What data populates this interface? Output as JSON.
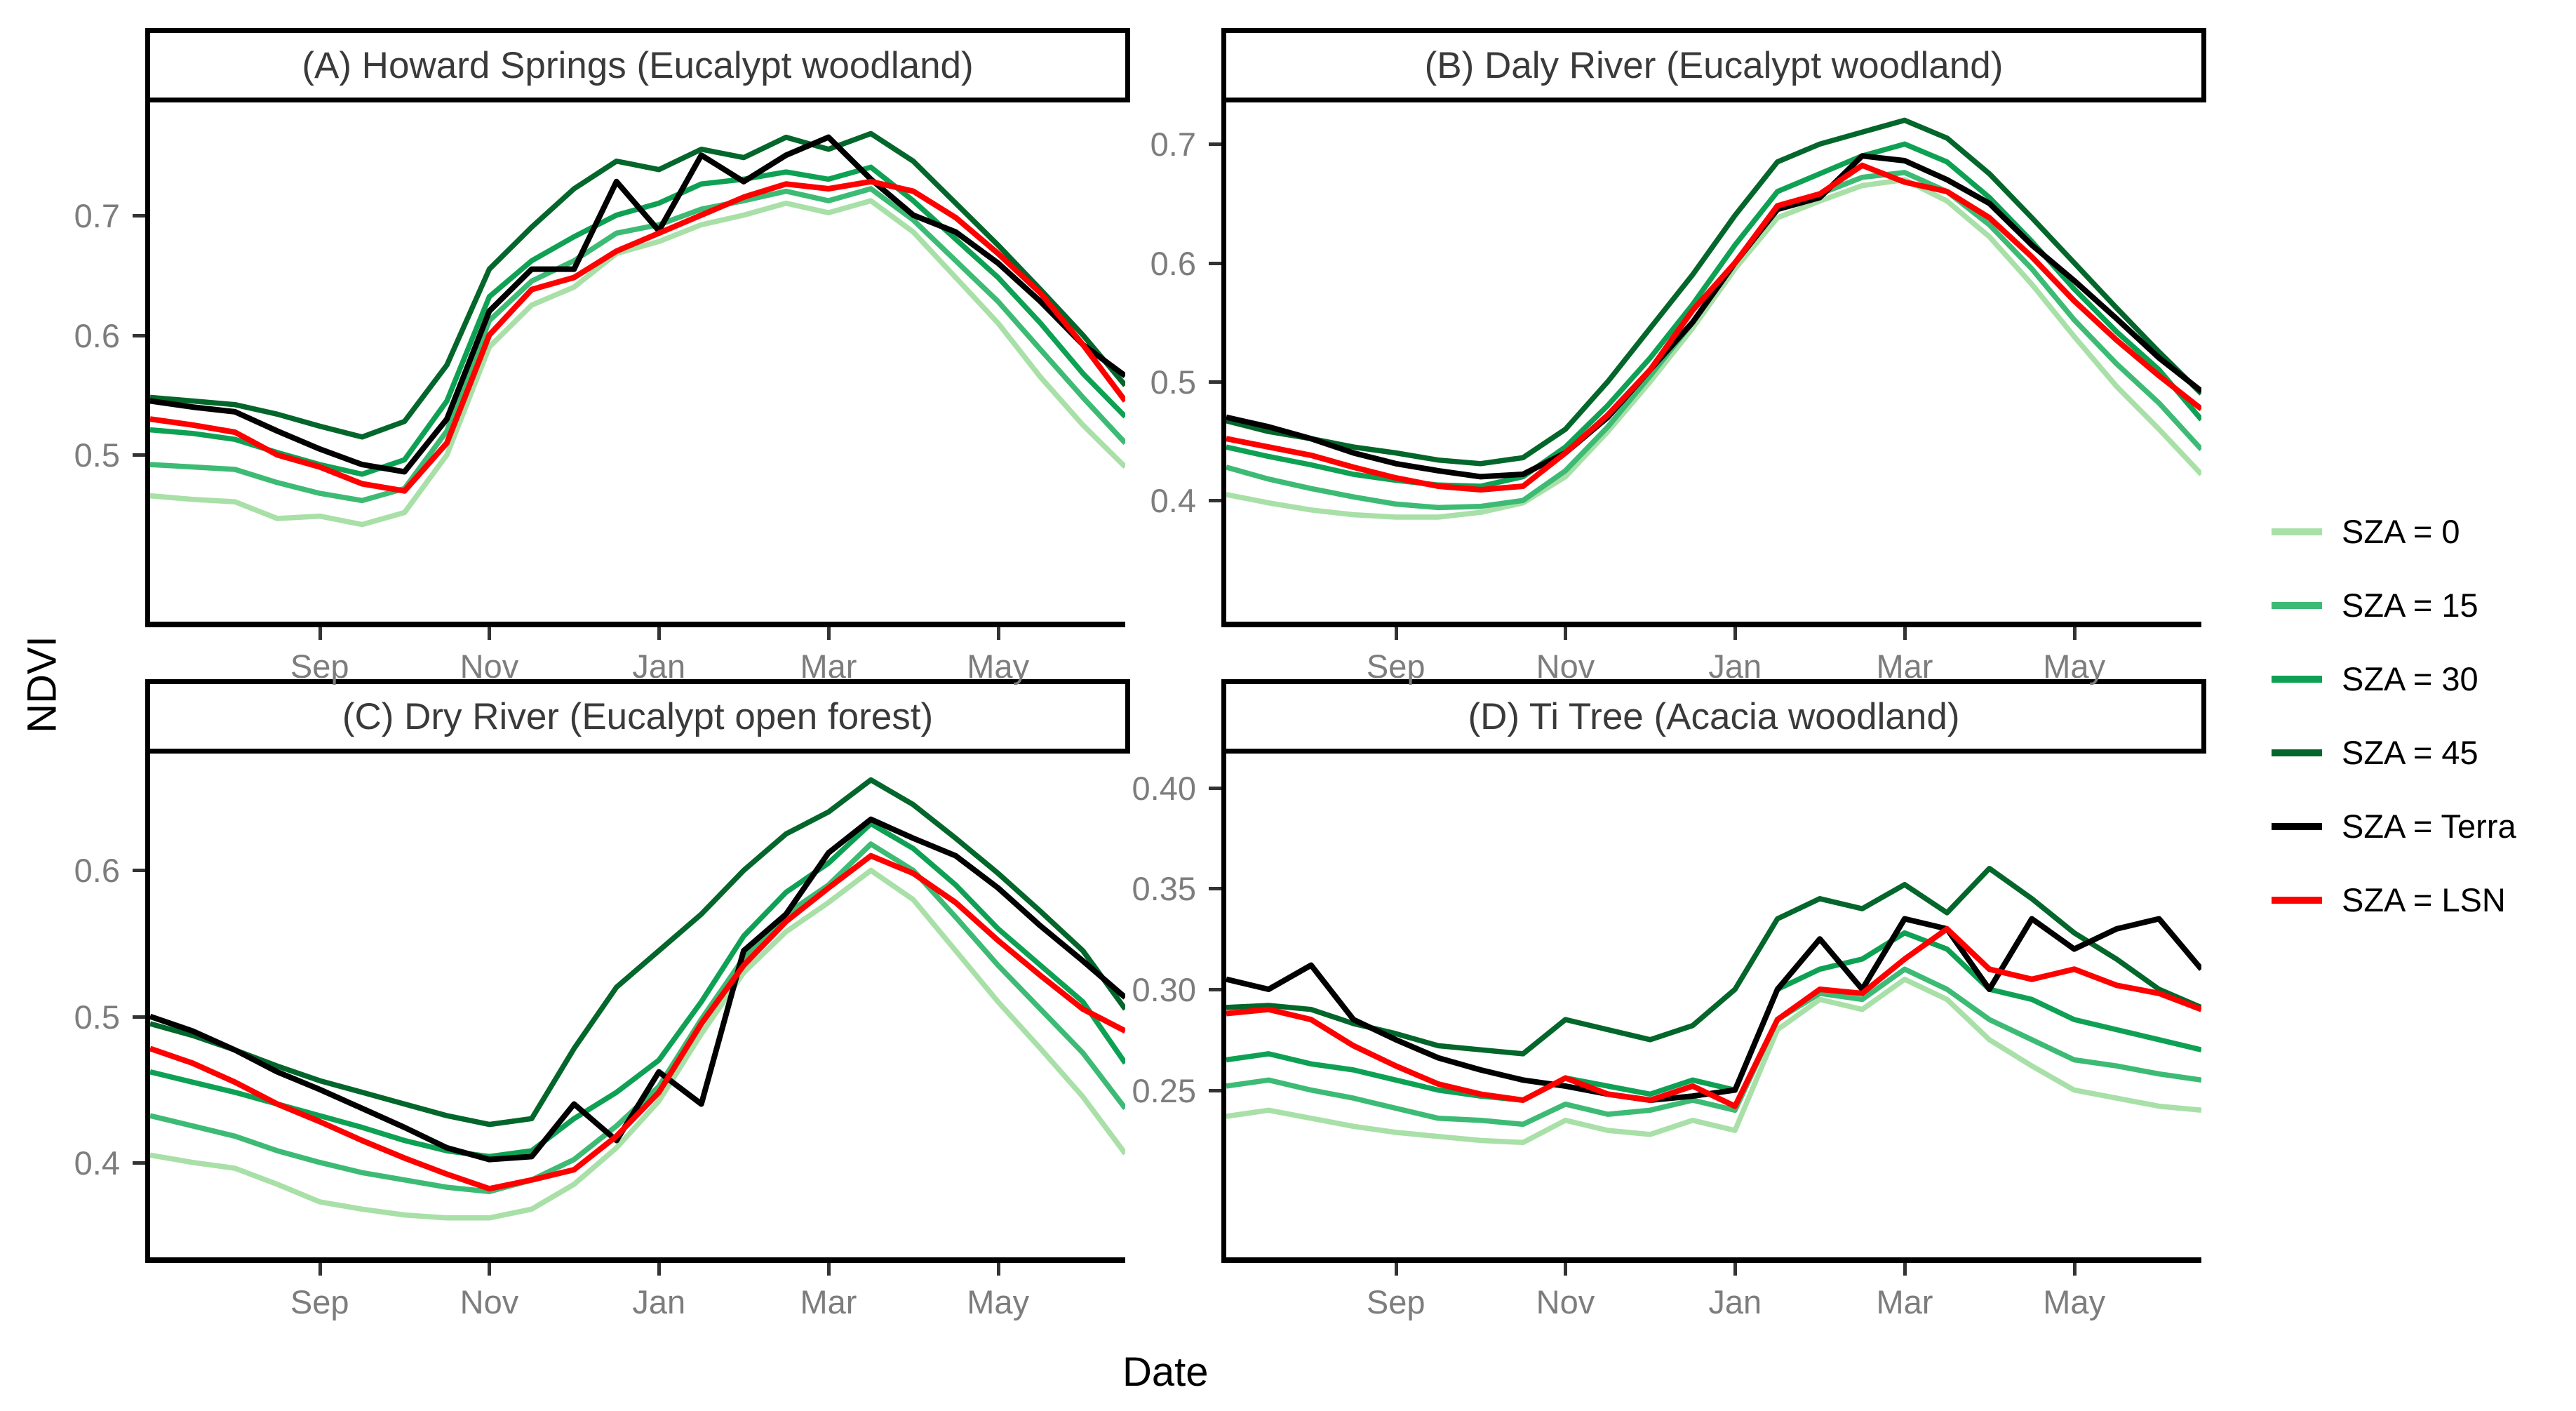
{
  "figure": {
    "ylabel": "NDVI",
    "xlabel": "Date"
  },
  "legend": {
    "position": "right-middle",
    "items": [
      {
        "label": "SZA = 0",
        "color": "#A8E0A8"
      },
      {
        "label": "SZA = 15",
        "color": "#3DBB75"
      },
      {
        "label": "SZA = 30",
        "color": "#0EA154"
      },
      {
        "label": "SZA = 45",
        "color": "#03662B"
      },
      {
        "label": "SZA = Terra",
        "color": "#000000"
      },
      {
        "label": "SZA = LSN",
        "color": "#FF0000"
      }
    ]
  },
  "chart_data": [
    {
      "type": "line",
      "title": "(A) Howard Springs (Eucalypt woodland)",
      "xlabel": "Date",
      "ylabel": "NDVI",
      "x_description": "semi-monthly time steps from Jul 1 to Jun 16 (24 points)",
      "x_tick_labels": [
        "Sep",
        "Nov",
        "Jan",
        "Mar",
        "May"
      ],
      "x_tick_index": [
        4,
        8,
        12,
        16,
        20
      ],
      "ylim": [
        0.361,
        0.794
      ],
      "yticks": [
        {
          "v": 0.5,
          "label": "0.5"
        },
        {
          "v": 0.6,
          "label": "0.6"
        },
        {
          "v": 0.7,
          "label": "0.7"
        }
      ],
      "grid": false,
      "series": [
        {
          "name": "SZA = 0",
          "color": "#A8E0A8",
          "width": 7.5,
          "values": [
            0.466,
            0.463,
            0.461,
            0.447,
            0.449,
            0.442,
            0.452,
            0.5,
            0.59,
            0.625,
            0.64,
            0.668,
            0.678,
            0.692,
            0.7,
            0.71,
            0.702,
            0.712,
            0.686,
            0.648,
            0.61,
            0.565,
            0.525,
            0.49
          ]
        },
        {
          "name": "SZA = 15",
          "color": "#3DBB75",
          "width": 7.5,
          "values": [
            0.492,
            0.49,
            0.488,
            0.477,
            0.468,
            0.462,
            0.472,
            0.52,
            0.612,
            0.645,
            0.662,
            0.685,
            0.692,
            0.705,
            0.712,
            0.72,
            0.712,
            0.722,
            0.696,
            0.662,
            0.628,
            0.588,
            0.548,
            0.51
          ]
        },
        {
          "name": "SZA = 30",
          "color": "#0EA154",
          "width": 7.5,
          "values": [
            0.521,
            0.518,
            0.513,
            0.502,
            0.492,
            0.484,
            0.496,
            0.545,
            0.632,
            0.662,
            0.682,
            0.7,
            0.71,
            0.726,
            0.73,
            0.736,
            0.73,
            0.74,
            0.712,
            0.68,
            0.648,
            0.61,
            0.568,
            0.532
          ]
        },
        {
          "name": "SZA = 45",
          "color": "#03662B",
          "width": 7.5,
          "values": [
            0.548,
            0.545,
            0.542,
            0.534,
            0.524,
            0.515,
            0.528,
            0.575,
            0.655,
            0.69,
            0.722,
            0.745,
            0.738,
            0.755,
            0.748,
            0.765,
            0.755,
            0.768,
            0.745,
            0.71,
            0.675,
            0.638,
            0.6,
            0.558
          ]
        },
        {
          "name": "SZA = Terra",
          "color": "#000000",
          "width": 8,
          "values": [
            0.545,
            0.54,
            0.536,
            0.52,
            0.505,
            0.492,
            0.486,
            0.53,
            0.62,
            0.655,
            0.655,
            0.728,
            0.687,
            0.75,
            0.728,
            0.75,
            0.765,
            0.73,
            0.7,
            0.686,
            0.66,
            0.628,
            0.592,
            0.566
          ]
        },
        {
          "name": "SZA = LSN",
          "color": "#FF0000",
          "width": 8,
          "values": [
            0.53,
            0.525,
            0.519,
            0.5,
            0.49,
            0.476,
            0.47,
            0.51,
            0.6,
            0.638,
            0.648,
            0.67,
            0.685,
            0.7,
            0.715,
            0.726,
            0.722,
            0.728,
            0.72,
            0.698,
            0.668,
            0.635,
            0.592,
            0.545
          ]
        }
      ]
    },
    {
      "type": "line",
      "title": "(B) Daly River (Eucalypt woodland)",
      "xlabel": "Date",
      "ylabel": "NDVI",
      "x_description": "semi-monthly time steps from Jul 1 to Jun 16 (24 points)",
      "x_tick_labels": [
        "Sep",
        "Nov",
        "Jan",
        "Mar",
        "May"
      ],
      "x_tick_index": [
        4,
        8,
        12,
        16,
        20
      ],
      "ylim": [
        0.298,
        0.735
      ],
      "yticks": [
        {
          "v": 0.4,
          "label": "0.4"
        },
        {
          "v": 0.5,
          "label": "0.5"
        },
        {
          "v": 0.6,
          "label": "0.6"
        },
        {
          "v": 0.7,
          "label": "0.7"
        }
      ],
      "grid": false,
      "series": [
        {
          "name": "SZA = 0",
          "color": "#A8E0A8",
          "width": 7.5,
          "values": [
            0.405,
            0.398,
            0.392,
            0.388,
            0.386,
            0.386,
            0.39,
            0.398,
            0.42,
            0.458,
            0.5,
            0.545,
            0.595,
            0.638,
            0.652,
            0.665,
            0.67,
            0.652,
            0.622,
            0.582,
            0.538,
            0.496,
            0.46,
            0.422
          ]
        },
        {
          "name": "SZA = 15",
          "color": "#3DBB75",
          "width": 7.5,
          "values": [
            0.428,
            0.418,
            0.41,
            0.403,
            0.397,
            0.394,
            0.395,
            0.4,
            0.425,
            0.462,
            0.505,
            0.55,
            0.6,
            0.645,
            0.658,
            0.672,
            0.676,
            0.66,
            0.632,
            0.595,
            0.552,
            0.515,
            0.482,
            0.443
          ]
        },
        {
          "name": "SZA = 30",
          "color": "#0EA154",
          "width": 7.5,
          "values": [
            0.445,
            0.437,
            0.43,
            0.422,
            0.417,
            0.413,
            0.412,
            0.42,
            0.445,
            0.48,
            0.52,
            0.565,
            0.615,
            0.66,
            0.675,
            0.69,
            0.7,
            0.685,
            0.655,
            0.618,
            0.578,
            0.542,
            0.51,
            0.468
          ]
        },
        {
          "name": "SZA = 45",
          "color": "#03662B",
          "width": 7.5,
          "values": [
            0.467,
            0.458,
            0.452,
            0.445,
            0.44,
            0.434,
            0.431,
            0.436,
            0.46,
            0.5,
            0.545,
            0.59,
            0.64,
            0.685,
            0.7,
            0.71,
            0.72,
            0.705,
            0.675,
            0.638,
            0.6,
            0.562,
            0.525,
            0.49
          ]
        },
        {
          "name": "SZA = Terra",
          "color": "#000000",
          "width": 8,
          "values": [
            0.47,
            0.462,
            0.452,
            0.44,
            0.431,
            0.425,
            0.42,
            0.422,
            0.44,
            0.47,
            0.51,
            0.55,
            0.6,
            0.645,
            0.655,
            0.69,
            0.686,
            0.67,
            0.65,
            0.615,
            0.585,
            0.553,
            0.52,
            0.492
          ]
        },
        {
          "name": "SZA = LSN",
          "color": "#FF0000",
          "width": 8,
          "values": [
            0.452,
            0.445,
            0.438,
            0.428,
            0.419,
            0.412,
            0.409,
            0.412,
            0.44,
            0.472,
            0.51,
            0.56,
            0.6,
            0.648,
            0.658,
            0.682,
            0.668,
            0.66,
            0.638,
            0.605,
            0.568,
            0.535,
            0.505,
            0.477
          ]
        }
      ]
    },
    {
      "type": "line",
      "title": "(C) Dry River (Eucalypt open forest)",
      "xlabel": "Date",
      "ylabel": "NDVI",
      "x_description": "semi-monthly time steps from Jul 1 to Jun 16 (24 points)",
      "x_tick_labels": [
        "Sep",
        "Nov",
        "Jan",
        "Mar",
        "May"
      ],
      "x_tick_index": [
        4,
        8,
        12,
        16,
        20
      ],
      "ylim": [
        0.335,
        0.68
      ],
      "yticks": [
        {
          "v": 0.4,
          "label": "0.4"
        },
        {
          "v": 0.5,
          "label": "0.5"
        },
        {
          "v": 0.6,
          "label": "0.6"
        }
      ],
      "grid": false,
      "series": [
        {
          "name": "SZA = 0",
          "color": "#A8E0A8",
          "width": 7.5,
          "values": [
            0.405,
            0.4,
            0.396,
            0.385,
            0.373,
            0.368,
            0.364,
            0.362,
            0.362,
            0.368,
            0.385,
            0.41,
            0.442,
            0.488,
            0.53,
            0.558,
            0.578,
            0.6,
            0.58,
            0.545,
            0.51,
            0.478,
            0.445,
            0.406
          ]
        },
        {
          "name": "SZA = 15",
          "color": "#3DBB75",
          "width": 7.5,
          "values": [
            0.432,
            0.425,
            0.418,
            0.408,
            0.4,
            0.393,
            0.388,
            0.383,
            0.38,
            0.388,
            0.402,
            0.425,
            0.452,
            0.498,
            0.54,
            0.57,
            0.59,
            0.618,
            0.6,
            0.568,
            0.535,
            0.505,
            0.475,
            0.437
          ]
        },
        {
          "name": "SZA = 30",
          "color": "#0EA154",
          "width": 7.5,
          "values": [
            0.462,
            0.455,
            0.448,
            0.44,
            0.432,
            0.424,
            0.415,
            0.408,
            0.404,
            0.408,
            0.43,
            0.448,
            0.47,
            0.51,
            0.555,
            0.585,
            0.605,
            0.632,
            0.615,
            0.59,
            0.56,
            0.535,
            0.51,
            0.468
          ]
        },
        {
          "name": "SZA = 45",
          "color": "#03662B",
          "width": 7.5,
          "values": [
            0.495,
            0.487,
            0.477,
            0.466,
            0.456,
            0.448,
            0.44,
            0.432,
            0.426,
            0.43,
            0.478,
            0.52,
            0.545,
            0.57,
            0.6,
            0.625,
            0.64,
            0.662,
            0.645,
            0.622,
            0.598,
            0.572,
            0.545,
            0.505
          ]
        },
        {
          "name": "SZA = Terra",
          "color": "#000000",
          "width": 8,
          "values": [
            0.5,
            0.49,
            0.477,
            0.462,
            0.45,
            0.437,
            0.424,
            0.41,
            0.402,
            0.404,
            0.44,
            0.415,
            0.462,
            0.44,
            0.545,
            0.57,
            0.612,
            0.635,
            0.622,
            0.61,
            0.588,
            0.562,
            0.538,
            0.513
          ]
        },
        {
          "name": "SZA = LSN",
          "color": "#FF0000",
          "width": 8,
          "values": [
            0.478,
            0.468,
            0.455,
            0.44,
            0.428,
            0.415,
            0.403,
            0.392,
            0.382,
            0.388,
            0.395,
            0.418,
            0.448,
            0.495,
            0.535,
            0.565,
            0.588,
            0.61,
            0.598,
            0.578,
            0.552,
            0.528,
            0.505,
            0.49
          ]
        }
      ]
    },
    {
      "type": "line",
      "title": "(D) Ti Tree (Acacia woodland)",
      "xlabel": "Date",
      "ylabel": "NDVI",
      "x_description": "semi-monthly time steps from Jul 1 to Jun 16 (24 points)",
      "x_tick_labels": [
        "Sep",
        "Nov",
        "Jan",
        "Mar",
        "May"
      ],
      "x_tick_index": [
        4,
        8,
        12,
        16,
        20
      ],
      "ylim": [
        0.167,
        0.417
      ],
      "yticks": [
        {
          "v": 0.25,
          "label": "0.25"
        },
        {
          "v": 0.3,
          "label": "0.30"
        },
        {
          "v": 0.35,
          "label": "0.35"
        },
        {
          "v": 0.4,
          "label": "0.40"
        }
      ],
      "grid": false,
      "series": [
        {
          "name": "SZA = 0",
          "color": "#A8E0A8",
          "width": 7.5,
          "values": [
            0.237,
            0.24,
            0.236,
            0.232,
            0.229,
            0.227,
            0.225,
            0.224,
            0.235,
            0.23,
            0.228,
            0.235,
            0.23,
            0.28,
            0.295,
            0.29,
            0.305,
            0.295,
            0.275,
            0.262,
            0.25,
            0.246,
            0.242,
            0.24
          ]
        },
        {
          "name": "SZA = 15",
          "color": "#3DBB75",
          "width": 7.5,
          "values": [
            0.252,
            0.255,
            0.25,
            0.246,
            0.241,
            0.236,
            0.235,
            0.233,
            0.243,
            0.238,
            0.24,
            0.245,
            0.24,
            0.285,
            0.298,
            0.295,
            0.31,
            0.3,
            0.285,
            0.275,
            0.265,
            0.262,
            0.258,
            0.255
          ]
        },
        {
          "name": "SZA = 30",
          "color": "#0EA154",
          "width": 7.5,
          "values": [
            0.265,
            0.268,
            0.263,
            0.26,
            0.255,
            0.25,
            0.247,
            0.245,
            0.256,
            0.252,
            0.248,
            0.255,
            0.25,
            0.3,
            0.31,
            0.315,
            0.328,
            0.32,
            0.3,
            0.295,
            0.285,
            0.28,
            0.275,
            0.27
          ]
        },
        {
          "name": "SZA = 45",
          "color": "#03662B",
          "width": 7.5,
          "values": [
            0.291,
            0.292,
            0.29,
            0.283,
            0.278,
            0.272,
            0.27,
            0.268,
            0.285,
            0.28,
            0.275,
            0.282,
            0.3,
            0.335,
            0.345,
            0.34,
            0.352,
            0.338,
            0.36,
            0.345,
            0.328,
            0.315,
            0.3,
            0.291
          ]
        },
        {
          "name": "SZA = Terra",
          "color": "#000000",
          "width": 8,
          "values": [
            0.305,
            0.3,
            0.312,
            0.285,
            0.275,
            0.266,
            0.26,
            0.255,
            0.252,
            0.248,
            0.245,
            0.247,
            0.25,
            0.3,
            0.325,
            0.3,
            0.335,
            0.33,
            0.3,
            0.335,
            0.32,
            0.33,
            0.335,
            0.31
          ]
        },
        {
          "name": "SZA = LSN",
          "color": "#FF0000",
          "width": 8,
          "values": [
            0.288,
            0.29,
            0.285,
            0.272,
            0.262,
            0.253,
            0.248,
            0.245,
            0.256,
            0.248,
            0.245,
            0.252,
            0.242,
            0.285,
            0.3,
            0.298,
            0.315,
            0.33,
            0.31,
            0.305,
            0.31,
            0.302,
            0.298,
            0.29
          ]
        }
      ]
    }
  ]
}
